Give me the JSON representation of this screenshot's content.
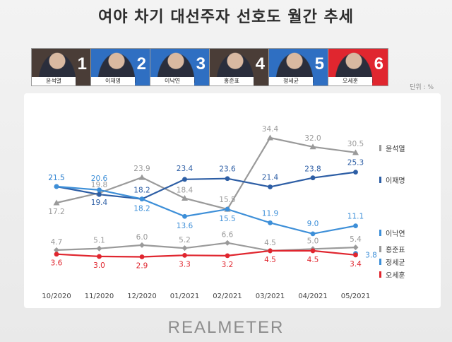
{
  "title": "여야 차기 대선주자 선호도 월간 추세",
  "unit": "단위 : %",
  "brand": "REALMETER",
  "candidates": [
    {
      "rank": "1",
      "name": "윤석열",
      "color": "#4a3d37"
    },
    {
      "rank": "2",
      "name": "이재명",
      "color": "#2f6fc2"
    },
    {
      "rank": "3",
      "name": "이낙연",
      "color": "#2f6fc2"
    },
    {
      "rank": "4",
      "name": "홍준표",
      "color": "#4a3d37"
    },
    {
      "rank": "5",
      "name": "정세균",
      "color": "#2f6fc2"
    },
    {
      "rank": "6",
      "name": "오세훈",
      "color": "#e0262f"
    }
  ],
  "chart_data": {
    "type": "line",
    "title": "여야 차기 대선주자 선호도 월간 추세",
    "ylabel": "단위 : %",
    "categories": [
      "10/2020",
      "11/2020",
      "12/2020",
      "01/2021",
      "02/2021",
      "03/2021",
      "04/2021",
      "05/2021"
    ],
    "ylim": [
      0,
      36
    ],
    "legend": "right",
    "series": [
      {
        "name": "윤석열",
        "color": "#9a9a9a",
        "marker": "triangle",
        "values": [
          17.2,
          19.8,
          23.9,
          18.4,
          15.5,
          34.4,
          32.0,
          30.5
        ],
        "labels": [
          "17.2",
          "19.8",
          "23.9",
          "18.4",
          "15.5",
          "34.4",
          "32.0",
          "30.5"
        ]
      },
      {
        "name": "이재명",
        "color": "#2d5ea5",
        "marker": "circle",
        "values": [
          21.5,
          19.4,
          18.2,
          23.4,
          23.6,
          21.4,
          23.8,
          25.3
        ],
        "labels": [
          "21.5",
          "19.4",
          "18.2",
          "23.4",
          "23.6",
          "21.4",
          "23.8",
          "25.3"
        ]
      },
      {
        "name": "이낙연",
        "color": "#3d8fd8",
        "marker": "circle",
        "values": [
          21.5,
          20.6,
          18.2,
          13.6,
          15.5,
          11.9,
          9.0,
          11.1
        ],
        "labels": [
          "21.5",
          "20.6",
          "18.2",
          "13.6",
          "15.5",
          "11.9",
          "9.0",
          "11.1"
        ]
      },
      {
        "name": "홍준표",
        "color": "#9a9a9a",
        "marker": "diamond",
        "values": [
          4.7,
          5.1,
          6.0,
          5.2,
          6.6,
          4.5,
          5.0,
          5.4
        ],
        "labels": [
          "4.7",
          "5.1",
          "6.0",
          "5.2",
          "6.6",
          "4.5",
          "5.0",
          "5.4"
        ]
      },
      {
        "name": "정세균",
        "color": "#3d8fd8",
        "marker": "circle",
        "values": [
          null,
          null,
          null,
          null,
          null,
          null,
          null,
          3.8
        ],
        "labels": [
          null,
          null,
          null,
          null,
          null,
          null,
          null,
          "3.8"
        ]
      },
      {
        "name": "오세훈",
        "color": "#e0262f",
        "marker": "circle",
        "values": [
          3.6,
          3.0,
          2.9,
          3.3,
          3.2,
          4.5,
          4.5,
          3.4
        ],
        "labels": [
          "3.6",
          "3.0",
          "2.9",
          "3.3",
          "3.2",
          "4.5",
          "4.5",
          "3.4"
        ]
      }
    ]
  }
}
